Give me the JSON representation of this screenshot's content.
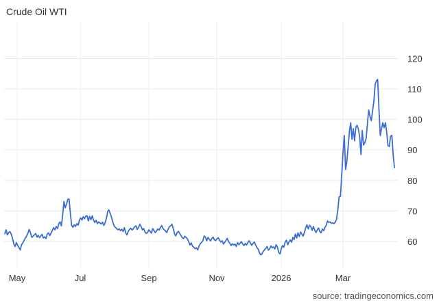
{
  "chart_data": {
    "type": "line",
    "title": "Crude Oil WTI",
    "source": "source: tradingeconomics.com",
    "x_tick_labels": [
      "May",
      "Jul",
      "Sep",
      "Nov",
      "2026",
      "Mar"
    ],
    "y_ticks": [
      60,
      70,
      80,
      90,
      100,
      110,
      120
    ],
    "ylim": [
      51,
      132
    ],
    "grid": true,
    "color": "#3b6cd4",
    "series": [
      {
        "values": [
          62.5,
          63.8,
          62.1,
          62.9,
          63.2,
          62.4,
          61.0,
          59.2,
          58.3,
          59.6,
          58.7,
          58.0,
          57.2,
          58.9,
          59.5,
          60.3,
          61.1,
          61.8,
          62.7,
          63.9,
          62.8,
          61.3,
          61.7,
          62.1,
          62.6,
          61.4,
          62.0,
          61.2,
          61.8,
          62.3,
          61.1,
          61.5,
          60.9,
          62.4,
          62.8,
          61.9,
          62.7,
          63.6,
          64.5,
          63.8,
          64.9,
          64.2,
          65.8,
          66.4,
          65.1,
          68.7,
          73.1,
          71.0,
          72.3,
          73.8,
          73.9,
          69.1,
          65.2,
          64.6,
          65.4,
          64.9,
          65.8,
          65.3,
          66.9,
          67.7,
          67.0,
          68.1,
          67.4,
          68.3,
          68.4,
          66.7,
          68.2,
          67.1,
          68.4,
          67.0,
          66.2,
          66.9,
          65.8,
          66.4,
          66.0,
          65.7,
          66.3,
          65.2,
          66.1,
          67.5,
          69.8,
          70.3,
          69.1,
          67.9,
          66.3,
          65.1,
          64.6,
          64.2,
          63.8,
          64.1,
          63.5,
          64.0,
          63.2,
          64.5,
          62.8,
          62.1,
          63.3,
          63.9,
          64.3,
          63.7,
          64.2,
          64.8,
          65.1,
          63.9,
          64.6,
          65.6,
          64.9,
          63.8,
          64.2,
          63.1,
          62.6,
          62.9,
          63.8,
          63.3,
          62.7,
          64.2,
          63.5,
          62.9,
          63.4,
          64.1,
          63.7,
          64.5,
          65.2,
          64.3,
          63.8,
          63.4,
          62.9,
          64.0,
          64.8,
          65.1,
          65.6,
          64.2,
          62.5,
          61.8,
          62.9,
          63.3,
          62.6,
          61.9,
          61.2,
          60.9,
          61.7,
          61.3,
          60.8,
          59.9,
          58.8,
          59.5,
          58.4,
          58.1,
          57.6,
          57.9,
          57.2,
          58.4,
          59.2,
          59.7,
          60.1,
          61.8,
          61.4,
          60.2,
          61.3,
          60.7,
          60.2,
          60.9,
          61.4,
          60.5,
          60.3,
          60.8,
          61.2,
          60.4,
          59.8,
          60.2,
          59.1,
          59.7,
          60.3,
          61.0,
          59.9,
          59.4,
          58.6,
          59.2,
          58.8,
          59.1,
          58.3,
          59.6,
          58.9,
          59.4,
          59.9,
          59.1,
          58.6,
          59.3,
          58.8,
          59.6,
          60.2,
          59.5,
          58.7,
          59.3,
          59.8,
          58.9,
          58.0,
          57.5,
          56.3,
          55.6,
          55.9,
          56.8,
          57.2,
          57.7,
          58.3,
          57.1,
          57.6,
          58.5,
          57.9,
          58.2,
          57.5,
          58.9,
          58.2,
          56.4,
          55.9,
          57.5,
          58.6,
          58.1,
          59.7,
          60.4,
          58.9,
          59.8,
          60.5,
          59.7,
          61.3,
          60.6,
          62.4,
          61.1,
          62.8,
          61.6,
          63.1,
          62.4,
          61.7,
          62.9,
          64.5,
          65.4,
          64.1,
          65.3,
          64.8,
          63.6,
          64.9,
          63.7,
          62.9,
          63.8,
          64.4,
          63.2,
          62.8,
          64.1,
          63.5,
          64.6,
          65.3,
          66.7,
          66.2,
          66.4,
          65.9,
          66.1,
          65.8,
          66.3,
          67.2,
          70.4,
          74.6,
          74.8,
          81.5,
          88.9,
          94.7,
          83.6,
          86.1,
          90.9,
          96.1,
          98.9,
          93.5,
          97.0,
          93.0,
          97.5,
          98.1,
          96.8,
          94.1,
          88.5,
          96.4,
          91.6,
          92.4,
          93.8,
          98.5,
          103.1,
          101.0,
          99.6,
          102.7,
          105.8,
          111.5,
          112.7,
          113.1,
          103.2,
          94.7,
          97.1,
          98.9,
          97.3,
          98.9,
          95.7,
          91.4,
          91.1,
          94.5,
          94.8,
          88.6,
          84.2
        ]
      }
    ]
  }
}
